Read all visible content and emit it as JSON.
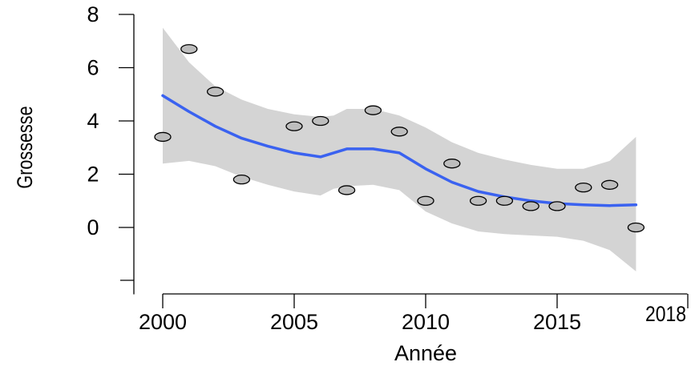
{
  "chart_data": {
    "type": "scatter",
    "title": "",
    "xlabel": "Année",
    "ylabel": "Grossesse",
    "xlim": [
      2000,
      2018
    ],
    "ylim": [
      -2,
      8
    ],
    "x_ticks": [
      2000,
      2005,
      2010,
      2015,
      2018
    ],
    "y_ticks": [
      0,
      2,
      4,
      6,
      8
    ],
    "x_tick_labels": [
      "2000",
      "2005",
      "2010",
      "2015",
      "2018"
    ],
    "y_tick_labels": [
      "0",
      "2",
      "4",
      "6",
      "8"
    ],
    "grid": false,
    "legend": "none",
    "colors": {
      "points": "#bdbdbd",
      "smooth": "#3a62f0",
      "band": "#d4d4d4"
    },
    "points": {
      "x": [
        2000,
        2001,
        2002,
        2003,
        2005,
        2006,
        2007,
        2008,
        2009,
        2010,
        2011,
        2012,
        2013,
        2014,
        2015,
        2016,
        2017,
        2018
      ],
      "y": [
        3.4,
        6.7,
        5.1,
        1.8,
        3.8,
        4.0,
        1.4,
        4.4,
        3.6,
        1.0,
        2.4,
        1.0,
        1.0,
        0.8,
        0.8,
        1.5,
        1.6,
        0.0
      ]
    },
    "smooth": {
      "x": [
        2000,
        2001,
        2002,
        2003,
        2004,
        2005,
        2006,
        2006.5,
        2007,
        2008,
        2009,
        2010,
        2011,
        2012,
        2013,
        2014,
        2015,
        2016,
        2017,
        2018
      ],
      "y": [
        4.95,
        4.35,
        3.8,
        3.35,
        3.05,
        2.8,
        2.65,
        2.8,
        2.95,
        2.95,
        2.8,
        2.2,
        1.7,
        1.35,
        1.15,
        1.0,
        0.9,
        0.85,
        0.82,
        0.85
      ],
      "lower": [
        2.4,
        2.5,
        2.3,
        1.9,
        1.6,
        1.35,
        1.2,
        1.45,
        1.55,
        1.6,
        1.4,
        0.6,
        0.15,
        -0.15,
        -0.25,
        -0.3,
        -0.35,
        -0.5,
        -0.85,
        -1.65
      ],
      "upper": [
        7.5,
        6.2,
        5.3,
        4.8,
        4.45,
        4.25,
        4.15,
        4.2,
        4.45,
        4.45,
        4.2,
        3.75,
        3.2,
        2.8,
        2.55,
        2.35,
        2.2,
        2.2,
        2.5,
        3.4
      ]
    }
  }
}
